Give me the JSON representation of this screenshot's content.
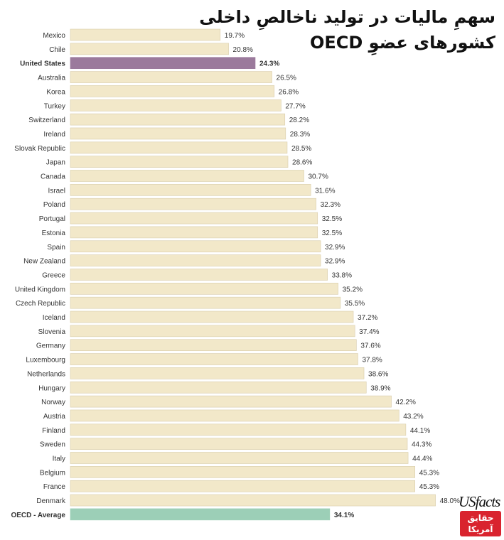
{
  "title": {
    "line1": "سهمِ مالیات در تولید ناخالصِ داخلی",
    "line2": "کشورهای عضوِ OECD"
  },
  "logo": {
    "latin": "USfacts",
    "persian_line1": "حقایق",
    "persian_line2": "آمریکا"
  },
  "colors": {
    "bar": "#f2e8c9",
    "bar_border": "#d8ccaa",
    "us_bar": "#9b7a9c",
    "average_bar": "#9ccfb7",
    "text": "#333333",
    "logo_red": "#d9232e"
  },
  "chart_data": {
    "type": "bar",
    "orientation": "horizontal",
    "unit": "%",
    "xlim": [
      0,
      48
    ],
    "categories": [
      "Mexico",
      "Chile",
      "United States",
      "Australia",
      "Korea",
      "Turkey",
      "Switzerland",
      "Ireland",
      "Slovak Republic",
      "Japan",
      "Canada",
      "Israel",
      "Poland",
      "Portugal",
      "Estonia",
      "Spain",
      "New Zealand",
      "Greece",
      "United Kingdom",
      "Czech Republic",
      "Iceland",
      "Slovenia",
      "Germany",
      "Luxembourg",
      "Netherlands",
      "Hungary",
      "Norway",
      "Austria",
      "Finland",
      "Sweden",
      "Italy",
      "Belgium",
      "France",
      "Denmark",
      "OECD - Average"
    ],
    "values": [
      19.7,
      20.8,
      24.3,
      26.5,
      26.8,
      27.7,
      28.2,
      28.3,
      28.5,
      28.6,
      30.7,
      31.6,
      32.3,
      32.5,
      32.5,
      32.9,
      32.9,
      33.8,
      35.2,
      35.5,
      37.2,
      37.4,
      37.6,
      37.8,
      38.6,
      38.9,
      42.2,
      43.2,
      44.1,
      44.3,
      44.4,
      45.3,
      45.3,
      48.0,
      34.1
    ],
    "value_labels": [
      "19.7%",
      "20.8%",
      "24.3%",
      "26.5%",
      "26.8%",
      "27.7%",
      "28.2%",
      "28.3%",
      "28.5%",
      "28.6%",
      "30.7%",
      "31.6%",
      "32.3%",
      "32.5%",
      "32.5%",
      "32.9%",
      "32.9%",
      "33.8%",
      "35.2%",
      "35.5%",
      "37.2%",
      "37.4%",
      "37.6%",
      "37.8%",
      "38.6%",
      "38.9%",
      "42.2%",
      "43.2%",
      "44.1%",
      "44.3%",
      "44.4%",
      "45.3%",
      "45.3%",
      "48.0%",
      "34.1%"
    ],
    "highlighted": [
      "United States",
      "OECD - Average"
    ]
  }
}
